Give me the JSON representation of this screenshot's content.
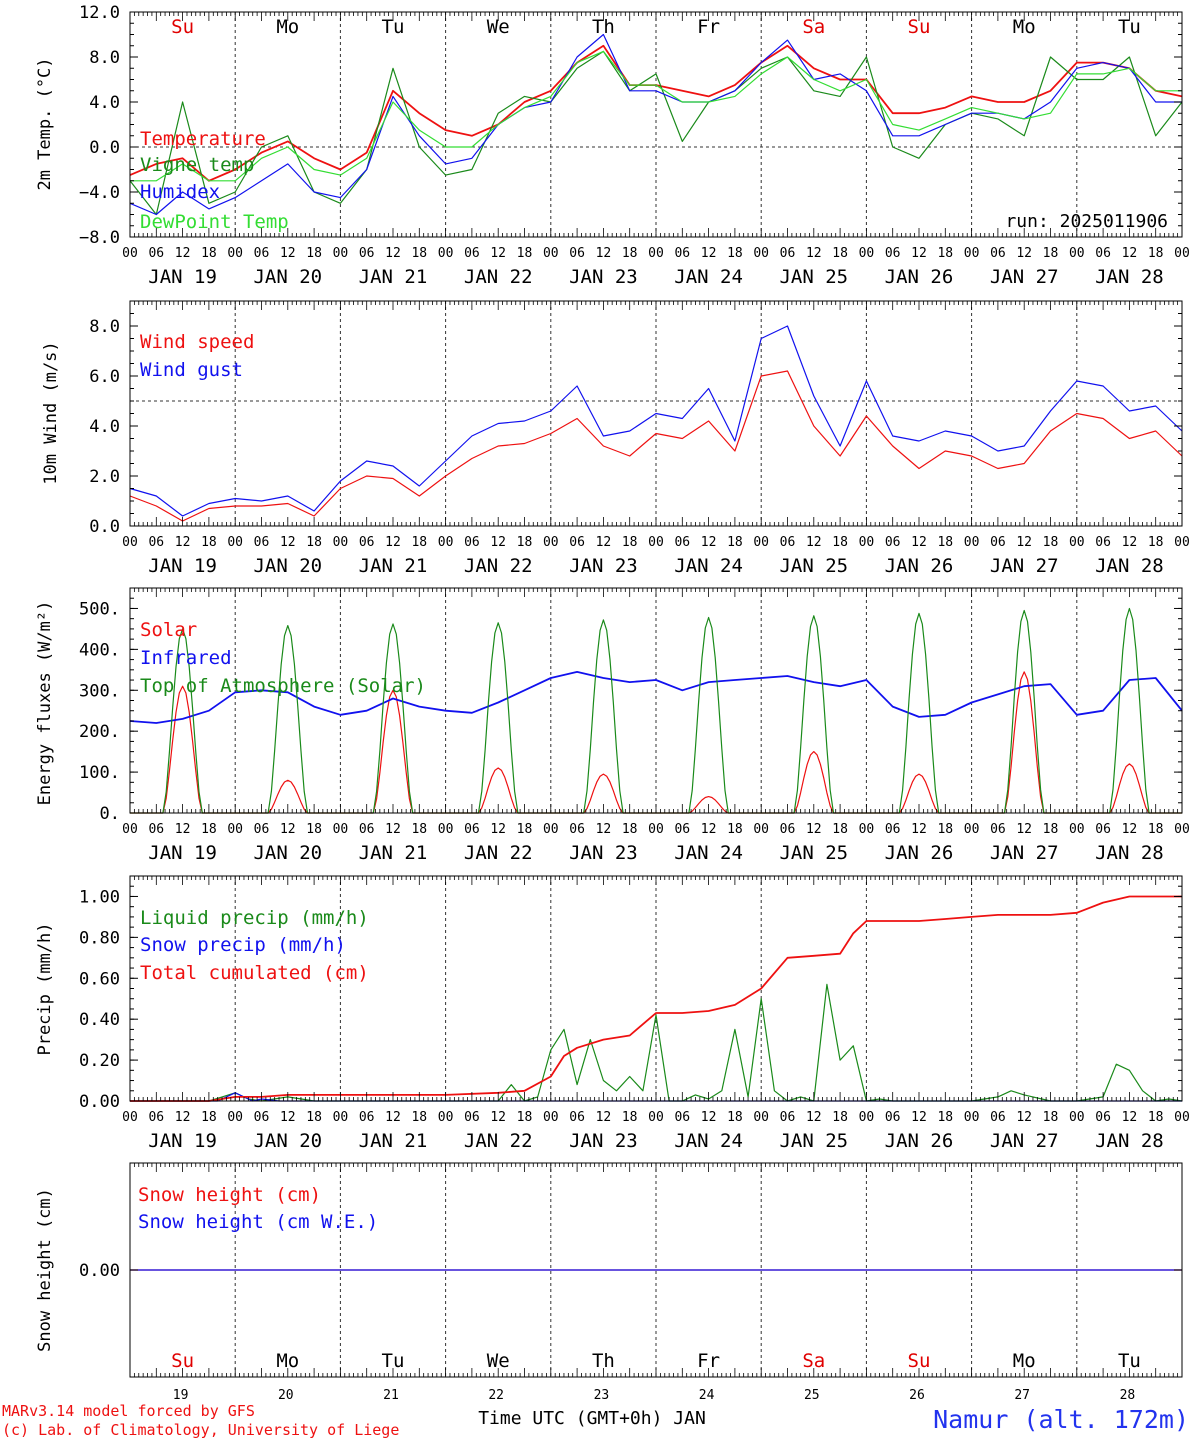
{
  "days": {
    "labels": [
      "JAN 19",
      "JAN 20",
      "JAN 21",
      "JAN 22",
      "JAN 23",
      "JAN 24",
      "JAN 25",
      "JAN 26",
      "JAN 27",
      "JAN 28"
    ],
    "short": [
      "19",
      "20",
      "21",
      "22",
      "23",
      "24",
      "25",
      "26",
      "27",
      "28"
    ],
    "weekdays": [
      "Su",
      "Mo",
      "Tu",
      "We",
      "Th",
      "Fr",
      "Sa",
      "Su",
      "Mo",
      "Tu"
    ],
    "weekday_colors": [
      "#e00000",
      "#000000",
      "#000000",
      "#000000",
      "#000000",
      "#000000",
      "#e00000",
      "#e00000",
      "#000000",
      "#000000"
    ],
    "hours": [
      "00",
      "06",
      "12",
      "18"
    ],
    "end_hour": "00"
  },
  "colors": {
    "red": "#ee1111",
    "green": "#1a8a1a",
    "blue": "#1111ee",
    "lightgreen": "#33dd33"
  },
  "run_label": "run: 2025011906",
  "footer": {
    "model": "MARv3.14 model forced by GFS",
    "copyright": "(c) Lab. of Climatology, University of Liege",
    "axis_title": "Time UTC (GMT+0h) JAN",
    "station": "Namur (alt. 172m)"
  },
  "chart_data": [
    {
      "type": "line",
      "ylabel": "2m Temp. (°C)",
      "ylim": [
        -8,
        12
      ],
      "yticks": [
        12,
        8,
        4,
        0,
        -4,
        -8
      ],
      "ytick_labels": [
        "12.0",
        "8.0",
        "4.0",
        "0.0",
        "−4.0",
        "−8.0"
      ],
      "x_unit": "hours since JAN 19 00 UTC",
      "xlim": [
        0,
        240
      ],
      "ref_line": 0,
      "series": [
        {
          "name": "Temperature",
          "color": "red",
          "x": [
            0,
            6,
            12,
            18,
            24,
            30,
            36,
            42,
            48,
            54,
            60,
            66,
            72,
            78,
            84,
            90,
            96,
            102,
            108,
            114,
            120,
            126,
            132,
            138,
            144,
            150,
            156,
            162,
            168,
            174,
            180,
            186,
            192,
            198,
            204,
            210,
            216,
            222,
            228,
            234,
            240
          ],
          "y": [
            -2.5,
            -1.5,
            -1,
            -3,
            -2,
            -0.5,
            0.5,
            -1,
            -2,
            -0.5,
            5,
            3,
            1.5,
            1,
            2,
            4,
            5,
            7.5,
            9,
            5.5,
            5.5,
            5,
            4.5,
            5.5,
            7.5,
            9,
            7,
            6,
            6,
            3,
            3,
            3.5,
            4.5,
            4,
            4,
            5,
            7.5,
            7.5,
            7,
            5,
            4.5
          ]
        },
        {
          "name": "Vigne temp",
          "color": "green",
          "x": [
            0,
            6,
            12,
            18,
            24,
            30,
            36,
            42,
            48,
            54,
            60,
            66,
            72,
            78,
            84,
            90,
            96,
            102,
            108,
            114,
            120,
            126,
            132,
            138,
            144,
            150,
            156,
            162,
            168,
            174,
            180,
            186,
            192,
            198,
            204,
            210,
            216,
            222,
            228,
            234,
            240
          ],
          "y": [
            -3,
            -6,
            4,
            -5,
            -4,
            0,
            1,
            -4,
            -5,
            -2,
            7,
            0,
            -2.5,
            -2,
            3,
            4.5,
            4,
            7,
            8.5,
            5,
            6.5,
            0.5,
            4,
            5,
            7,
            8,
            5,
            4.5,
            8,
            0,
            -1,
            2,
            3,
            2.5,
            1,
            8,
            6,
            6,
            8,
            1,
            4
          ]
        },
        {
          "name": "Humidex",
          "color": "blue",
          "x": [
            0,
            6,
            12,
            18,
            24,
            30,
            36,
            42,
            48,
            54,
            60,
            66,
            72,
            78,
            84,
            90,
            96,
            102,
            108,
            114,
            120,
            126,
            132,
            138,
            144,
            150,
            156,
            162,
            168,
            174,
            180,
            186,
            192,
            198,
            204,
            210,
            216,
            222,
            228,
            234,
            240
          ],
          "y": [
            -5,
            -6,
            -4,
            -5.5,
            -4.5,
            -3,
            -1.5,
            -4,
            -4.5,
            -2,
            4.5,
            1,
            -1.5,
            -1,
            2,
            3.5,
            4,
            8,
            10,
            5,
            5,
            4,
            4,
            5,
            7.5,
            9.5,
            6,
            6.5,
            5,
            1,
            1,
            2,
            3,
            3,
            2.5,
            4,
            7,
            7.5,
            7,
            4,
            4
          ]
        },
        {
          "name": "DewPoint Temp",
          "color": "lightgreen",
          "x": [
            0,
            6,
            12,
            18,
            24,
            30,
            36,
            42,
            48,
            54,
            60,
            66,
            72,
            78,
            84,
            90,
            96,
            102,
            108,
            114,
            120,
            126,
            132,
            138,
            144,
            150,
            156,
            162,
            168,
            174,
            180,
            186,
            192,
            198,
            204,
            210,
            216,
            222,
            228,
            234,
            240
          ],
          "y": [
            -3,
            -3,
            -1.5,
            -3,
            -3,
            -1,
            0,
            -2,
            -2.5,
            -1,
            4,
            1.5,
            0,
            0,
            2,
            3.5,
            4.5,
            7.5,
            8.5,
            5.5,
            5.5,
            4,
            4,
            4.5,
            6.5,
            8,
            6,
            5,
            6,
            2,
            1.5,
            2.5,
            3.5,
            3,
            2.5,
            3,
            6.5,
            6.5,
            7,
            5,
            5
          ]
        }
      ]
    },
    {
      "type": "line",
      "ylabel": "10m Wind (m/s)",
      "ylim": [
        0,
        9
      ],
      "yticks": [
        0,
        2,
        4,
        6,
        8
      ],
      "ytick_labels": [
        "0.0",
        "2.0",
        "4.0",
        "6.0",
        "8.0"
      ],
      "x_unit": "hours since JAN 19 00 UTC",
      "xlim": [
        0,
        240
      ],
      "ref_line": 5,
      "series": [
        {
          "name": "Wind speed",
          "color": "red",
          "x": [
            0,
            6,
            12,
            18,
            24,
            30,
            36,
            42,
            48,
            54,
            60,
            66,
            72,
            78,
            84,
            90,
            96,
            102,
            108,
            114,
            120,
            126,
            132,
            138,
            144,
            150,
            156,
            162,
            168,
            174,
            180,
            186,
            192,
            198,
            204,
            210,
            216,
            222,
            228,
            234,
            240
          ],
          "y": [
            1.2,
            0.8,
            0.2,
            0.7,
            0.8,
            0.8,
            0.9,
            0.4,
            1.5,
            2,
            1.9,
            1.2,
            2,
            2.7,
            3.2,
            3.3,
            3.7,
            4.3,
            3.2,
            2.8,
            3.7,
            3.5,
            4.2,
            3,
            6,
            6.2,
            4,
            2.8,
            4.4,
            3.2,
            2.3,
            3,
            2.8,
            2.3,
            2.5,
            3.8,
            4.5,
            4.3,
            3.5,
            3.8,
            2.8
          ]
        },
        {
          "name": "Wind gust",
          "color": "blue",
          "x": [
            0,
            6,
            12,
            18,
            24,
            30,
            36,
            42,
            48,
            54,
            60,
            66,
            72,
            78,
            84,
            90,
            96,
            102,
            108,
            114,
            120,
            126,
            132,
            138,
            144,
            150,
            156,
            162,
            168,
            174,
            180,
            186,
            192,
            198,
            204,
            210,
            216,
            222,
            228,
            234,
            240
          ],
          "y": [
            1.5,
            1.2,
            0.4,
            0.9,
            1.1,
            1.0,
            1.2,
            0.6,
            1.8,
            2.6,
            2.4,
            1.6,
            2.6,
            3.6,
            4.1,
            4.2,
            4.6,
            5.6,
            3.6,
            3.8,
            4.5,
            4.3,
            5.5,
            3.4,
            7.5,
            8.0,
            5.2,
            3.2,
            5.8,
            3.6,
            3.4,
            3.8,
            3.6,
            3.0,
            3.2,
            4.6,
            5.8,
            5.6,
            4.6,
            4.8,
            3.8
          ]
        }
      ]
    },
    {
      "type": "line",
      "ylabel": "Energy fluxes (W/m²)",
      "ylim": [
        0,
        550
      ],
      "yticks": [
        0,
        100,
        200,
        300,
        400,
        500
      ],
      "ytick_labels": [
        "0.",
        "100.",
        "200.",
        "300.",
        "400.",
        "500."
      ],
      "x_unit": "hours since JAN 19 00 UTC",
      "xlim": [
        0,
        240
      ],
      "diurnal_window_hours": [
        7.5,
        16.5
      ],
      "series": [
        {
          "name": "Solar",
          "color": "red",
          "daily_peaks": [
            310,
            80,
            300,
            110,
            95,
            40,
            150,
            95,
            345,
            120
          ]
        },
        {
          "name": "Infrared",
          "color": "blue",
          "x": [
            0,
            6,
            12,
            18,
            24,
            30,
            36,
            42,
            48,
            54,
            60,
            66,
            72,
            78,
            84,
            90,
            96,
            102,
            108,
            114,
            120,
            126,
            132,
            138,
            144,
            150,
            156,
            162,
            168,
            174,
            180,
            186,
            192,
            198,
            204,
            210,
            216,
            222,
            228,
            234,
            240
          ],
          "y": [
            225,
            220,
            230,
            250,
            295,
            300,
            295,
            260,
            240,
            250,
            280,
            260,
            250,
            245,
            270,
            300,
            330,
            345,
            330,
            320,
            325,
            300,
            320,
            325,
            330,
            335,
            320,
            310,
            325,
            260,
            235,
            240,
            270,
            290,
            310,
            315,
            240,
            250,
            325,
            330,
            250
          ]
        },
        {
          "name": "Top of Atmosphere (Solar)",
          "color": "green",
          "daily_peaks": [
            450,
            458,
            462,
            465,
            472,
            478,
            482,
            488,
            495,
            500
          ]
        }
      ]
    },
    {
      "type": "line",
      "ylabel": "Precip (mm/h)",
      "ylim": [
        0,
        1.1
      ],
      "yticks": [
        0,
        0.2,
        0.4,
        0.6,
        0.8,
        1.0
      ],
      "ytick_labels": [
        "0.00",
        "0.20",
        "0.40",
        "0.60",
        "0.80",
        "1.00"
      ],
      "x_unit": "hours since JAN 19 00 UTC",
      "xlim": [
        0,
        240
      ],
      "series": [
        {
          "name": "Liquid precip (mm/h)",
          "color": "green",
          "x": [
            0,
            6,
            12,
            18,
            21,
            24,
            27,
            30,
            36,
            42,
            48,
            54,
            60,
            66,
            72,
            78,
            84,
            87,
            90,
            93,
            96,
            99,
            102,
            105,
            108,
            111,
            114,
            117,
            120,
            123,
            126,
            129,
            132,
            135,
            138,
            141,
            144,
            147,
            150,
            153,
            156,
            159,
            162,
            165,
            168,
            171,
            174,
            177,
            180,
            186,
            192,
            198,
            201,
            204,
            210,
            216,
            222,
            225,
            228,
            231,
            234,
            237,
            240
          ],
          "y": [
            0,
            0,
            0,
            0,
            0.02,
            0.04,
            0.01,
            0,
            0.02,
            0,
            0,
            0,
            0,
            0,
            0,
            0,
            0,
            0.08,
            0,
            0.02,
            0.25,
            0.35,
            0.08,
            0.3,
            0.1,
            0.05,
            0.12,
            0.05,
            0.42,
            0,
            0,
            0.03,
            0.01,
            0.05,
            0.35,
            0.02,
            0.5,
            0.05,
            0,
            0.02,
            0,
            0.57,
            0.2,
            0.27,
            0,
            0.01,
            0,
            0,
            0,
            0,
            0,
            0.02,
            0.05,
            0.03,
            0,
            0,
            0.02,
            0.18,
            0.15,
            0.05,
            0,
            0.01,
            0
          ]
        },
        {
          "name": "Snow precip (mm/h)",
          "color": "blue",
          "x": [
            0,
            20,
            24,
            28,
            30,
            34,
            40,
            240
          ],
          "y": [
            0,
            0,
            0.04,
            0,
            0.01,
            0,
            0,
            0
          ]
        },
        {
          "name": "Total cumulated (cm)",
          "color": "red",
          "x": [
            0,
            18,
            24,
            30,
            36,
            48,
            60,
            72,
            84,
            90,
            96,
            99,
            102,
            108,
            114,
            120,
            126,
            132,
            138,
            144,
            150,
            156,
            162,
            165,
            168,
            174,
            180,
            186,
            192,
            198,
            204,
            210,
            216,
            222,
            228,
            234,
            240
          ],
          "y": [
            0,
            0,
            0.02,
            0.02,
            0.03,
            0.03,
            0.03,
            0.03,
            0.04,
            0.05,
            0.12,
            0.22,
            0.26,
            0.3,
            0.32,
            0.43,
            0.43,
            0.44,
            0.47,
            0.55,
            0.7,
            0.71,
            0.72,
            0.82,
            0.88,
            0.88,
            0.88,
            0.89,
            0.9,
            0.91,
            0.91,
            0.91,
            0.92,
            0.97,
            1.0,
            1.0,
            1.0
          ]
        }
      ]
    },
    {
      "type": "line",
      "ylabel": "Snow height (cm)",
      "ylim": [
        -1,
        1
      ],
      "yticks": [
        0
      ],
      "ytick_labels": [
        "0.00"
      ],
      "x_unit": "hours since JAN 19 00 UTC",
      "xlim": [
        0,
        240
      ],
      "series": [
        {
          "name": "Snow height (cm)",
          "color": "red",
          "x": [
            0,
            240
          ],
          "y": [
            0,
            0
          ]
        },
        {
          "name": "Snow height (cm W.E.)",
          "color": "blue",
          "x": [
            0,
            240
          ],
          "y": [
            0,
            0
          ]
        }
      ]
    }
  ]
}
